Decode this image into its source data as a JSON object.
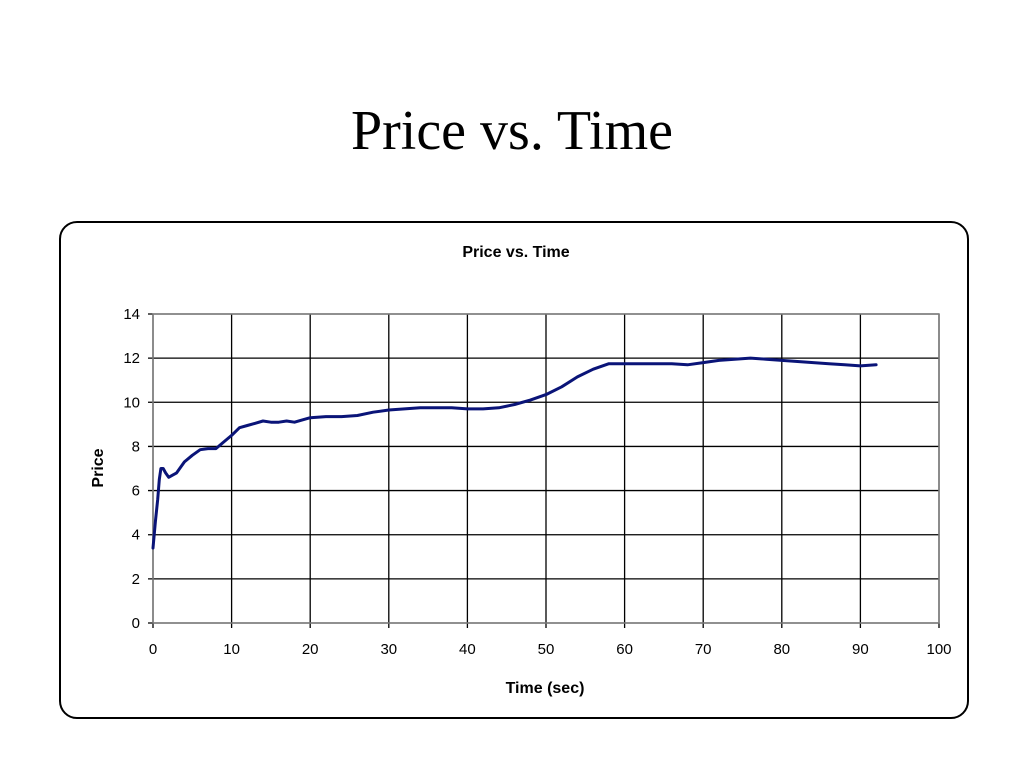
{
  "slide": {
    "title": "Price vs. Time"
  },
  "chart_data": {
    "type": "line",
    "title": "Price vs. Time",
    "xlabel": "Time (sec)",
    "ylabel": "Price",
    "xlim": [
      0,
      100
    ],
    "ylim": [
      0,
      14
    ],
    "xticks": [
      0,
      10,
      20,
      30,
      40,
      50,
      60,
      70,
      80,
      90,
      100
    ],
    "yticks": [
      0,
      2,
      4,
      6,
      8,
      10,
      12,
      14
    ],
    "grid": true,
    "legend": "none",
    "colors": {
      "line": "#0a1478",
      "grid": "#000000",
      "plot_border": "#808080"
    },
    "series": [
      {
        "x": [
          0,
          0.3,
          0.6,
          0.8,
          1.0,
          1.3,
          1.6,
          2.0,
          2.5,
          3,
          4,
          5,
          6,
          7,
          8,
          9,
          10,
          11,
          12,
          13,
          14,
          15,
          16,
          17,
          18,
          19,
          20,
          22,
          24,
          26,
          28,
          30,
          32,
          34,
          36,
          38,
          40,
          42,
          44,
          46,
          48,
          50,
          52,
          54,
          56,
          58,
          60,
          62,
          64,
          66,
          68,
          70,
          72,
          74,
          76,
          78,
          80,
          82,
          84,
          86,
          88,
          90,
          92
        ],
        "y": [
          3.4,
          4.6,
          5.6,
          6.5,
          7.0,
          7.0,
          6.8,
          6.6,
          6.7,
          6.8,
          7.3,
          7.6,
          7.85,
          7.9,
          7.9,
          8.2,
          8.5,
          8.85,
          8.95,
          9.05,
          9.15,
          9.1,
          9.1,
          9.15,
          9.1,
          9.2,
          9.3,
          9.35,
          9.35,
          9.4,
          9.55,
          9.65,
          9.7,
          9.75,
          9.75,
          9.75,
          9.7,
          9.7,
          9.75,
          9.9,
          10.1,
          10.35,
          10.7,
          11.15,
          11.5,
          11.75,
          11.75,
          11.75,
          11.75,
          11.75,
          11.7,
          11.8,
          11.9,
          11.95,
          12.0,
          11.95,
          11.9,
          11.85,
          11.8,
          11.75,
          11.7,
          11.65,
          11.7
        ]
      }
    ]
  }
}
